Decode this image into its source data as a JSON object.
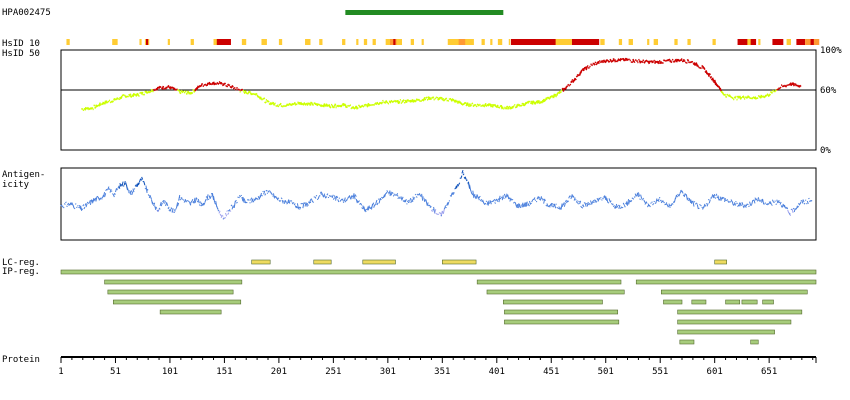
{
  "antigen_id": "HPA002475",
  "antigen_region": {
    "start": 262,
    "end": 407
  },
  "labels": {
    "hsid10": "HsID 10",
    "hsid50": "HsID 50",
    "antigen_1": "Antigen-",
    "antigen_2": "icity",
    "lc_reg": "LC-reg.",
    "ip_reg": "IP-reg.",
    "protein": "Protein"
  },
  "colors": {
    "antigen_bar": "#228b22",
    "identity_low": "#ccff00",
    "identity_high": "#cc0000",
    "hsid_low": "#ffcc33",
    "hsid_mid": "#ff9933",
    "hsid_high": "#cc0000",
    "antigenicity_high": "#0b4fb8",
    "antigenicity_mid": "#4a7fdc",
    "antigenicity_low": "#9fa3ee",
    "lc_fill": "#eedb60",
    "ip_fill": "#a7cc7c",
    "region_stroke": "#556b2f"
  },
  "chart_data": [
    {
      "type": "line",
      "name": "hsid-50-identity",
      "xlabel": "",
      "ylabel": "",
      "xlim": [
        1,
        694
      ],
      "ylim": [
        0,
        100
      ],
      "y_ticks": [
        "100%",
        "60%",
        "0%"
      ],
      "threshold": 60,
      "x": [
        20,
        30,
        40,
        50,
        60,
        70,
        80,
        90,
        100,
        110,
        120,
        130,
        140,
        150,
        160,
        170,
        180,
        190,
        200,
        210,
        220,
        230,
        240,
        250,
        260,
        270,
        280,
        290,
        300,
        310,
        320,
        330,
        340,
        350,
        360,
        370,
        380,
        390,
        400,
        410,
        420,
        430,
        440,
        450,
        460,
        470,
        480,
        490,
        500,
        510,
        520,
        530,
        540,
        550,
        560,
        570,
        580,
        590,
        600,
        610,
        620,
        630,
        640,
        650,
        660,
        670,
        680
      ],
      "y": [
        41,
        42,
        47,
        50,
        54,
        55,
        58,
        62,
        63,
        58,
        57,
        65,
        67,
        66,
        62,
        58,
        56,
        48,
        45,
        45,
        47,
        46,
        45,
        44,
        45,
        42,
        44,
        47,
        48,
        48,
        49,
        50,
        52,
        51,
        50,
        46,
        45,
        45,
        44,
        42,
        44,
        47,
        48,
        52,
        58,
        68,
        80,
        86,
        89,
        90,
        90,
        89,
        88,
        88,
        89,
        90,
        88,
        82,
        70,
        55,
        52,
        53,
        52,
        55,
        62,
        66,
        64
      ]
    },
    {
      "type": "line",
      "name": "antigenicity",
      "xlabel": "",
      "ylabel": "",
      "xlim": [
        1,
        694
      ],
      "ylim": [
        -1,
        1
      ],
      "x": [
        1,
        10,
        20,
        30,
        40,
        45,
        50,
        55,
        60,
        65,
        70,
        75,
        80,
        85,
        90,
        95,
        100,
        105,
        110,
        115,
        120,
        125,
        130,
        135,
        140,
        145,
        150,
        155,
        160,
        165,
        170,
        180,
        190,
        200,
        210,
        220,
        230,
        240,
        250,
        260,
        270,
        280,
        290,
        300,
        310,
        320,
        330,
        340,
        350,
        360,
        365,
        370,
        375,
        380,
        385,
        390,
        400,
        410,
        420,
        430,
        440,
        450,
        460,
        470,
        480,
        490,
        500,
        510,
        520,
        530,
        540,
        550,
        560,
        570,
        580,
        590,
        600,
        610,
        620,
        630,
        640,
        650,
        660,
        670,
        680,
        690
      ],
      "y": [
        -0.05,
        0.0,
        -0.15,
        0.1,
        0.25,
        0.45,
        0.3,
        0.55,
        0.65,
        0.3,
        0.55,
        0.75,
        0.4,
        0.05,
        -0.2,
        0.1,
        -0.1,
        -0.25,
        0.2,
        0.1,
        0.0,
        0.15,
        -0.05,
        0.2,
        0.25,
        -0.15,
        -0.45,
        -0.2,
        -0.05,
        0.25,
        0.05,
        0.15,
        0.4,
        0.15,
        0.05,
        -0.1,
        0.05,
        0.3,
        0.2,
        0.1,
        0.25,
        -0.2,
        0.0,
        0.35,
        0.25,
        0.05,
        0.3,
        -0.1,
        -0.35,
        0.3,
        0.55,
        0.95,
        0.6,
        0.25,
        0.2,
        0.0,
        0.1,
        0.25,
        -0.05,
        0.0,
        0.2,
        -0.05,
        -0.1,
        0.25,
        -0.05,
        0.05,
        0.2,
        -0.1,
        0.0,
        0.3,
        -0.05,
        0.15,
        -0.1,
        0.4,
        0.05,
        -0.15,
        0.25,
        0.15,
        0.0,
        -0.05,
        0.15,
        0.0,
        0.1,
        -0.3,
        0.05,
        0.1
      ]
    },
    {
      "type": "bar",
      "name": "regions-and-axis",
      "xlabel": "",
      "ylabel": "",
      "xlim": [
        1,
        694
      ],
      "x_ticks": [
        "1",
        "51",
        "101",
        "151",
        "201",
        "251",
        "301",
        "351",
        "401",
        "451",
        "501",
        "551",
        "601",
        "651"
      ],
      "hsid10_segments": [
        {
          "start": 6,
          "end": 9,
          "level": "low"
        },
        {
          "start": 48,
          "end": 53,
          "level": "low"
        },
        {
          "start": 73,
          "end": 75,
          "level": "low"
        },
        {
          "start": 78,
          "end": 82,
          "level": "low"
        },
        {
          "start": 79,
          "end": 81,
          "level": "high"
        },
        {
          "start": 99,
          "end": 101,
          "level": "low"
        },
        {
          "start": 120,
          "end": 123,
          "level": "low"
        },
        {
          "start": 141,
          "end": 145,
          "level": "low"
        },
        {
          "start": 144,
          "end": 157,
          "level": "high"
        },
        {
          "start": 167,
          "end": 171,
          "level": "low"
        },
        {
          "start": 185,
          "end": 190,
          "level": "low"
        },
        {
          "start": 201,
          "end": 204,
          "level": "low"
        },
        {
          "start": 225,
          "end": 230,
          "level": "low"
        },
        {
          "start": 238,
          "end": 241,
          "level": "low"
        },
        {
          "start": 259,
          "end": 262,
          "level": "low"
        },
        {
          "start": 272,
          "end": 274,
          "level": "low"
        },
        {
          "start": 279,
          "end": 282,
          "level": "low"
        },
        {
          "start": 287,
          "end": 290,
          "level": "low"
        },
        {
          "start": 299,
          "end": 314,
          "level": "low"
        },
        {
          "start": 303,
          "end": 309,
          "level": "mid"
        },
        {
          "start": 306,
          "end": 308,
          "level": "high"
        },
        {
          "start": 322,
          "end": 325,
          "level": "low"
        },
        {
          "start": 332,
          "end": 334,
          "level": "low"
        },
        {
          "start": 356,
          "end": 380,
          "level": "low"
        },
        {
          "start": 366,
          "end": 372,
          "level": "mid"
        },
        {
          "start": 387,
          "end": 390,
          "level": "low"
        },
        {
          "start": 395,
          "end": 397,
          "level": "low"
        },
        {
          "start": 402,
          "end": 406,
          "level": "low"
        },
        {
          "start": 412,
          "end": 413,
          "level": "low"
        },
        {
          "start": 414,
          "end": 459,
          "level": "high"
        },
        {
          "start": 455,
          "end": 470,
          "level": "low"
        },
        {
          "start": 470,
          "end": 495,
          "level": "high"
        },
        {
          "start": 496,
          "end": 500,
          "level": "low"
        },
        {
          "start": 513,
          "end": 516,
          "level": "low"
        },
        {
          "start": 522,
          "end": 526,
          "level": "low"
        },
        {
          "start": 539,
          "end": 541,
          "level": "low"
        },
        {
          "start": 545,
          "end": 549,
          "level": "low"
        },
        {
          "start": 564,
          "end": 567,
          "level": "low"
        },
        {
          "start": 576,
          "end": 579,
          "level": "low"
        },
        {
          "start": 599,
          "end": 602,
          "level": "low"
        },
        {
          "start": 622,
          "end": 639,
          "level": "high"
        },
        {
          "start": 631,
          "end": 634,
          "level": "low"
        },
        {
          "start": 641,
          "end": 643,
          "level": "low"
        },
        {
          "start": 654,
          "end": 664,
          "level": "high"
        },
        {
          "start": 667,
          "end": 671,
          "level": "low"
        },
        {
          "start": 676,
          "end": 684,
          "level": "high"
        },
        {
          "start": 684,
          "end": 697,
          "level": "mid"
        },
        {
          "start": 689,
          "end": 692,
          "level": "high"
        }
      ],
      "lc_regions": [
        {
          "start": 176,
          "end": 193
        },
        {
          "start": 233,
          "end": 249
        },
        {
          "start": 278,
          "end": 308
        },
        {
          "start": 351,
          "end": 382
        },
        {
          "start": 601,
          "end": 612
        }
      ],
      "ip_rows": [
        [
          {
            "start": 1,
            "end": 694
          }
        ],
        [
          {
            "start": 41,
            "end": 167
          },
          {
            "start": 383,
            "end": 515
          },
          {
            "start": 529,
            "end": 694
          }
        ],
        [
          {
            "start": 44,
            "end": 159
          },
          {
            "start": 392,
            "end": 518
          },
          {
            "start": 552,
            "end": 686
          }
        ],
        [
          {
            "start": 49,
            "end": 166
          },
          {
            "start": 407,
            "end": 498
          },
          {
            "start": 554,
            "end": 571
          },
          {
            "start": 580,
            "end": 593
          },
          {
            "start": 611,
            "end": 624
          },
          {
            "start": 626,
            "end": 640
          },
          {
            "start": 645,
            "end": 655
          }
        ],
        [
          {
            "start": 92,
            "end": 148
          },
          {
            "start": 408,
            "end": 512
          },
          {
            "start": 567,
            "end": 681
          }
        ],
        [
          {
            "start": 408,
            "end": 513
          },
          {
            "start": 567,
            "end": 671
          }
        ],
        [
          {
            "start": 567,
            "end": 656
          }
        ],
        [
          {
            "start": 569,
            "end": 582
          },
          {
            "start": 634,
            "end": 641
          }
        ]
      ]
    }
  ]
}
